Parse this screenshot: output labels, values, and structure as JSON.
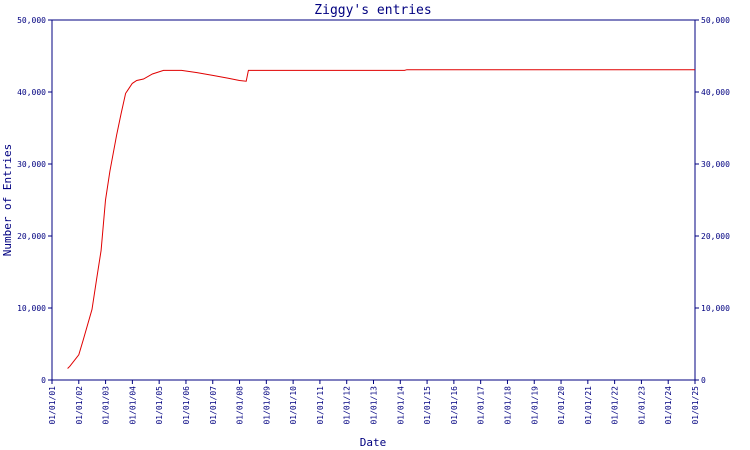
{
  "chart_data": {
    "type": "line",
    "title": "Ziggy's entries",
    "xlabel": "Date",
    "ylabel": "Number of Entries",
    "ylim": [
      0,
      50000
    ],
    "y_ticks": [
      {
        "value": 0,
        "label": "0"
      },
      {
        "value": 10000,
        "label": "10,000"
      },
      {
        "value": 20000,
        "label": "20,000"
      },
      {
        "value": 30000,
        "label": "30,000"
      },
      {
        "value": 40000,
        "label": "40,000"
      },
      {
        "value": 50000,
        "label": "50,000"
      }
    ],
    "x_ticks": [
      "01/01/01",
      "01/01/02",
      "01/01/03",
      "01/01/04",
      "01/01/05",
      "01/01/06",
      "01/01/07",
      "01/01/08",
      "01/01/09",
      "01/01/10",
      "01/01/11",
      "01/01/12",
      "01/01/13",
      "01/01/14",
      "01/01/15",
      "01/01/16",
      "01/01/17",
      "01/01/18",
      "01/01/19",
      "01/01/20",
      "01/01/21",
      "01/01/22",
      "01/01/23",
      "01/01/24",
      "01/01/25"
    ],
    "xlim": [
      "2001-01-01",
      "2025-01-01"
    ],
    "series": [
      {
        "color": "#e00000",
        "x": [
          "2001-08-01",
          "2001-09-01",
          "2002-01-01",
          "2002-03-01",
          "2002-07-01",
          "2002-09-01",
          "2002-11-01",
          "2003-01-01",
          "2003-03-01",
          "2003-06-01",
          "2003-08-01",
          "2003-10-01",
          "2004-01-01",
          "2004-03-01",
          "2004-06-01",
          "2004-10-01",
          "2005-03-01",
          "2005-09-01",
          "2005-11-01",
          "2006-06-01",
          "2007-01-01",
          "2007-08-01",
          "2008-01-01",
          "2008-04-01",
          "2008-05-01",
          "2010-01-01",
          "2012-01-01",
          "2014-03-01",
          "2014-04-01",
          "2016-01-01",
          "2020-01-01",
          "2025-01-01"
        ],
        "y": [
          1600,
          1900,
          3500,
          5500,
          9800,
          14000,
          18000,
          25000,
          29000,
          34000,
          37000,
          39800,
          41200,
          41600,
          41800,
          42500,
          43000,
          43000,
          43000,
          42700,
          42300,
          41900,
          41600,
          41500,
          43000,
          43000,
          43000,
          43000,
          43100,
          43100,
          43100,
          43100
        ]
      }
    ],
    "grid": false,
    "legend": "none"
  },
  "colors": {
    "axis": "#000080",
    "line": "#e00000"
  }
}
